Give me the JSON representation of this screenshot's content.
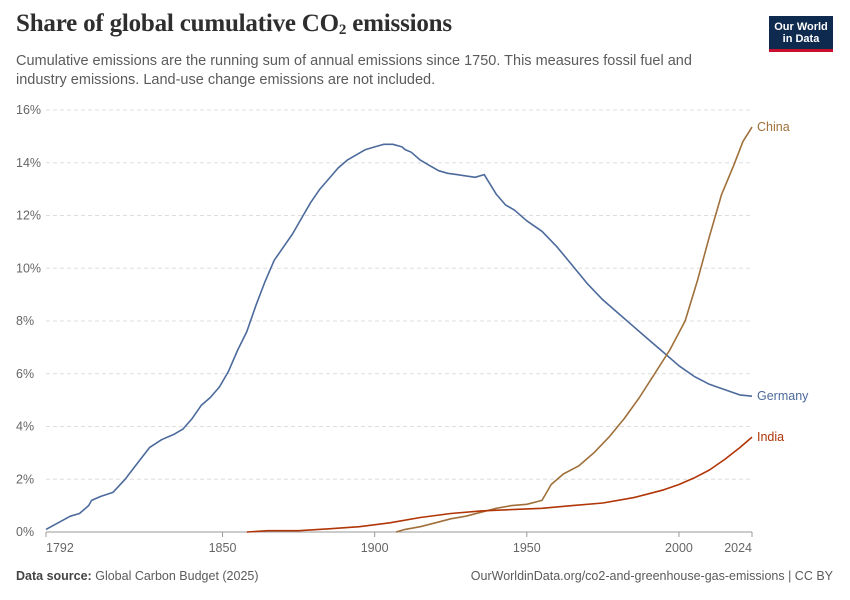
{
  "header": {
    "title_main": "Share of global cumulative CO",
    "title_sub": "2",
    "title_end": " emissions",
    "subtitle": "Cumulative emissions are the running sum of annual emissions since 1750. This measures fossil fuel and industry emissions. Land-use change emissions are not included."
  },
  "logo": {
    "line1": "Our World",
    "line2": "in Data",
    "bg_color": "#0e2a4f",
    "accent_color": "#c8102e"
  },
  "footer": {
    "source_label": "Data source:",
    "source_value": "Global Carbon Budget (2025)",
    "url": "OurWorldinData.org/co2-and-greenhouse-gas-emissions | CC BY"
  },
  "chart_data": {
    "type": "line",
    "title": "Share of global cumulative CO2 emissions",
    "xlim": [
      1792,
      2024
    ],
    "ylim": [
      0,
      16
    ],
    "x_ticks": [
      1792,
      1850,
      1900,
      1950,
      2000,
      2024
    ],
    "y_ticks": [
      0,
      2,
      4,
      6,
      8,
      10,
      12,
      14,
      16
    ],
    "y_tick_labels": [
      "0%",
      "2%",
      "4%",
      "6%",
      "8%",
      "10%",
      "12%",
      "14%",
      "16%"
    ],
    "grid": "horizontal-dashed",
    "series": [
      {
        "name": "Germany",
        "color": "#4c6a9c",
        "points": [
          [
            1792,
            0.1
          ],
          [
            1800,
            0.6
          ],
          [
            1803,
            0.7
          ],
          [
            1806,
            1.0
          ],
          [
            1807,
            1.2
          ],
          [
            1810,
            1.35
          ],
          [
            1814,
            1.5
          ],
          [
            1818,
            2.0
          ],
          [
            1822,
            2.6
          ],
          [
            1826,
            3.2
          ],
          [
            1830,
            3.5
          ],
          [
            1834,
            3.7
          ],
          [
            1837,
            3.9
          ],
          [
            1840,
            4.3
          ],
          [
            1843,
            4.8
          ],
          [
            1846,
            5.1
          ],
          [
            1849,
            5.5
          ],
          [
            1852,
            6.1
          ],
          [
            1855,
            6.9
          ],
          [
            1858,
            7.6
          ],
          [
            1861,
            8.6
          ],
          [
            1864,
            9.5
          ],
          [
            1867,
            10.3
          ],
          [
            1870,
            10.8
          ],
          [
            1873,
            11.3
          ],
          [
            1876,
            11.9
          ],
          [
            1879,
            12.5
          ],
          [
            1882,
            13.0
          ],
          [
            1885,
            13.4
          ],
          [
            1888,
            13.8
          ],
          [
            1891,
            14.1
          ],
          [
            1894,
            14.3
          ],
          [
            1897,
            14.5
          ],
          [
            1900,
            14.6
          ],
          [
            1903,
            14.7
          ],
          [
            1906,
            14.7
          ],
          [
            1909,
            14.6
          ],
          [
            1910,
            14.5
          ],
          [
            1912,
            14.4
          ],
          [
            1915,
            14.1
          ],
          [
            1918,
            13.9
          ],
          [
            1921,
            13.7
          ],
          [
            1924,
            13.6
          ],
          [
            1927,
            13.55
          ],
          [
            1930,
            13.5
          ],
          [
            1933,
            13.45
          ],
          [
            1936,
            13.55
          ],
          [
            1940,
            12.8
          ],
          [
            1943,
            12.4
          ],
          [
            1946,
            12.2
          ],
          [
            1950,
            11.8
          ],
          [
            1955,
            11.4
          ],
          [
            1960,
            10.8
          ],
          [
            1965,
            10.1
          ],
          [
            1970,
            9.4
          ],
          [
            1975,
            8.8
          ],
          [
            1980,
            8.3
          ],
          [
            1985,
            7.8
          ],
          [
            1990,
            7.3
          ],
          [
            1995,
            6.8
          ],
          [
            2000,
            6.3
          ],
          [
            2005,
            5.9
          ],
          [
            2010,
            5.6
          ],
          [
            2015,
            5.4
          ],
          [
            2020,
            5.2
          ],
          [
            2024,
            5.15
          ]
        ]
      },
      {
        "name": "China",
        "color": "#a0703a",
        "points": [
          [
            1907,
            0.0
          ],
          [
            1910,
            0.1
          ],
          [
            1915,
            0.2
          ],
          [
            1920,
            0.35
          ],
          [
            1925,
            0.5
          ],
          [
            1930,
            0.6
          ],
          [
            1935,
            0.75
          ],
          [
            1940,
            0.9
          ],
          [
            1945,
            1.0
          ],
          [
            1950,
            1.05
          ],
          [
            1955,
            1.2
          ],
          [
            1958,
            1.8
          ],
          [
            1962,
            2.2
          ],
          [
            1967,
            2.5
          ],
          [
            1972,
            3.0
          ],
          [
            1977,
            3.6
          ],
          [
            1982,
            4.3
          ],
          [
            1987,
            5.1
          ],
          [
            1992,
            6.0
          ],
          [
            1997,
            6.9
          ],
          [
            2002,
            8.0
          ],
          [
            2006,
            9.5
          ],
          [
            2010,
            11.2
          ],
          [
            2014,
            12.8
          ],
          [
            2018,
            13.9
          ],
          [
            2021,
            14.8
          ],
          [
            2024,
            15.35
          ]
        ]
      },
      {
        "name": "India",
        "color": "#b13507",
        "points": [
          [
            1858,
            0.0
          ],
          [
            1865,
            0.05
          ],
          [
            1875,
            0.05
          ],
          [
            1885,
            0.12
          ],
          [
            1895,
            0.2
          ],
          [
            1905,
            0.35
          ],
          [
            1915,
            0.55
          ],
          [
            1925,
            0.7
          ],
          [
            1935,
            0.8
          ],
          [
            1945,
            0.85
          ],
          [
            1955,
            0.9
          ],
          [
            1965,
            1.0
          ],
          [
            1975,
            1.1
          ],
          [
            1985,
            1.3
          ],
          [
            1990,
            1.45
          ],
          [
            1995,
            1.6
          ],
          [
            2000,
            1.8
          ],
          [
            2005,
            2.05
          ],
          [
            2010,
            2.35
          ],
          [
            2015,
            2.75
          ],
          [
            2020,
            3.2
          ],
          [
            2024,
            3.6
          ]
        ]
      }
    ]
  }
}
